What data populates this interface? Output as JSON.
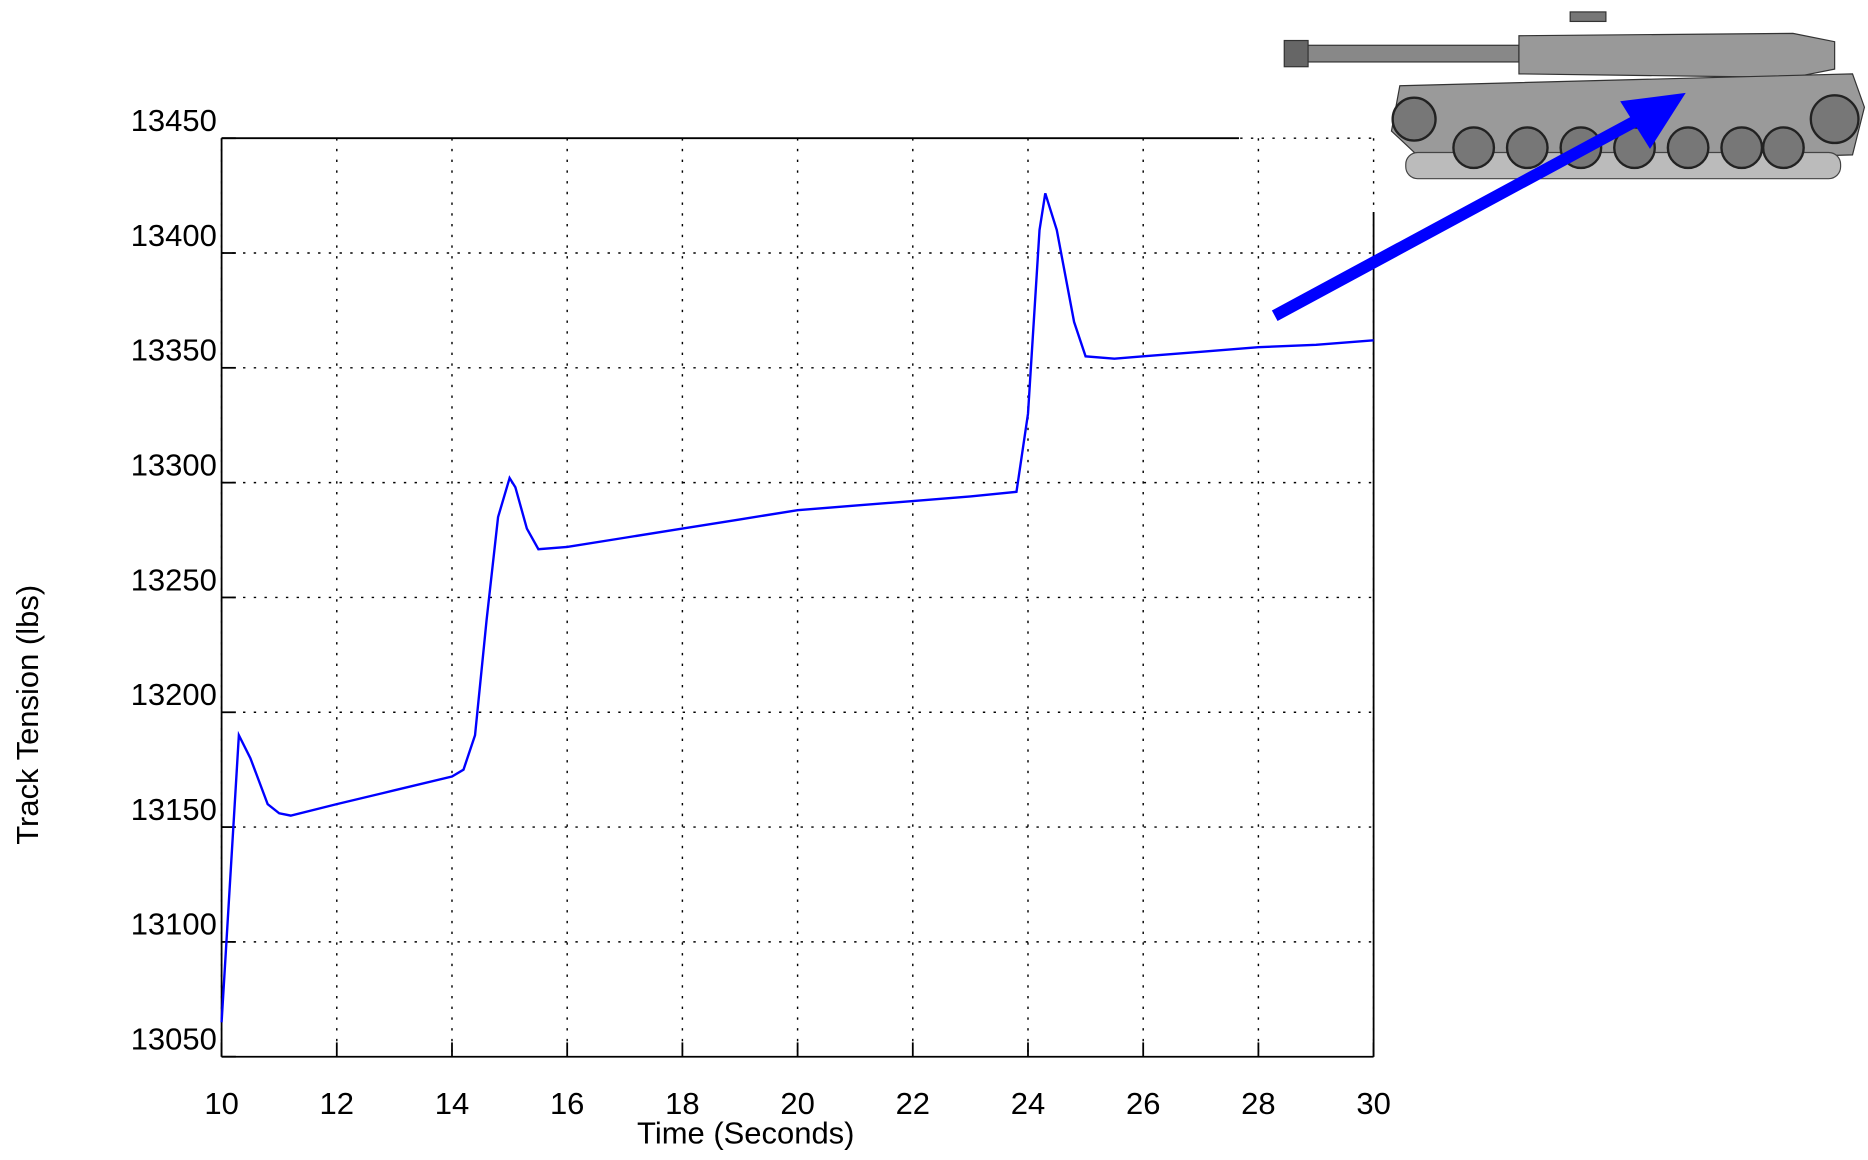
{
  "chart_data": {
    "type": "line",
    "xlabel": "Time (Seconds)",
    "ylabel": "Track Tension (lbs)",
    "x": [
      10.0,
      10.3,
      10.5,
      10.8,
      11.0,
      11.2,
      12,
      13,
      14,
      14.2,
      14.4,
      14.6,
      14.8,
      15.0,
      15.1,
      15.3,
      15.5,
      16,
      17,
      18,
      19,
      20,
      21,
      22,
      23,
      23.8,
      24.0,
      24.2,
      24.3,
      24.5,
      24.8,
      25.0,
      25.5,
      26,
      27,
      28,
      29,
      30
    ],
    "values": [
      13065,
      13190,
      13180,
      13160,
      13156,
      13155,
      13160,
      13166,
      13172,
      13175,
      13190,
      13240,
      13285,
      13302,
      13298,
      13280,
      13271,
      13272,
      13276,
      13280,
      13284,
      13288,
      13290,
      13292,
      13294,
      13296,
      13330,
      13410,
      13426,
      13410,
      13370,
      13355,
      13354,
      13355,
      13357,
      13359,
      13360,
      13362
    ],
    "color": "#0000ff",
    "xlim": [
      10,
      30
    ],
    "ylim": [
      13050,
      13450
    ],
    "xticks": [
      10,
      12,
      14,
      16,
      18,
      20,
      22,
      24,
      26,
      28,
      30
    ],
    "yticks": [
      13050,
      13100,
      13150,
      13200,
      13250,
      13300,
      13350,
      13400,
      13450
    ],
    "grid": true
  }
}
